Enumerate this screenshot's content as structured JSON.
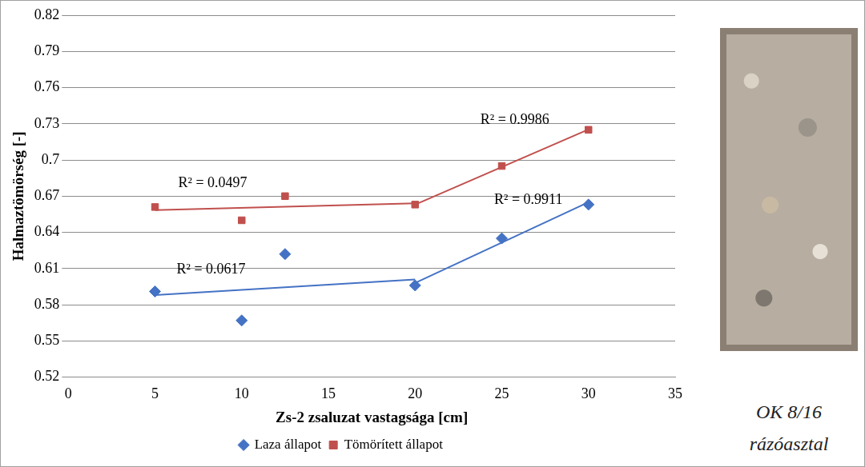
{
  "chart_data": {
    "type": "scatter",
    "x_label": "Zs-2 zsaluzat vastagsága [cm]",
    "y_label": "Halmaztömörség [-]",
    "xlim": [
      0,
      35
    ],
    "xticks": [
      0,
      5,
      10,
      15,
      20,
      25,
      30,
      35
    ],
    "ylim": [
      0.52,
      0.82
    ],
    "yticks": [
      0.52,
      0.55,
      0.58,
      0.61,
      0.64,
      0.67,
      0.7,
      0.73,
      0.76,
      0.79,
      0.82
    ],
    "grid": "y",
    "legend": "bottom",
    "series": [
      {
        "name": "Laza állapot",
        "color": "#4472c4",
        "marker": "diamond",
        "x": [
          5,
          10,
          12.5,
          20,
          25,
          30
        ],
        "values": [
          0.591,
          0.567,
          0.622,
          0.596,
          0.635,
          0.663
        ],
        "trendlines": [
          {
            "x": [
              5,
              20
            ],
            "values": [
              0.588,
              0.601
            ],
            "label": "R² = 0.0617"
          },
          {
            "x": [
              20,
              30
            ],
            "values": [
              0.598,
              0.665
            ],
            "label": "R² = 0.9911"
          }
        ]
      },
      {
        "name": "Tömörített állapot",
        "color": "#c0504d",
        "marker": "square",
        "x": [
          5,
          10,
          12.5,
          20,
          25,
          30
        ],
        "values": [
          0.661,
          0.65,
          0.67,
          0.663,
          0.695,
          0.725
        ],
        "trendlines": [
          {
            "x": [
              5,
              20
            ],
            "values": [
              0.6585,
              0.664
            ],
            "label": "R² = 0.0497"
          },
          {
            "x": [
              20,
              30
            ],
            "values": [
              0.663,
              0.7253
            ],
            "label": "R² = 0.9986"
          }
        ]
      }
    ]
  },
  "image": {
    "caption": [
      "OK 8/16",
      "rázóasztal"
    ]
  }
}
